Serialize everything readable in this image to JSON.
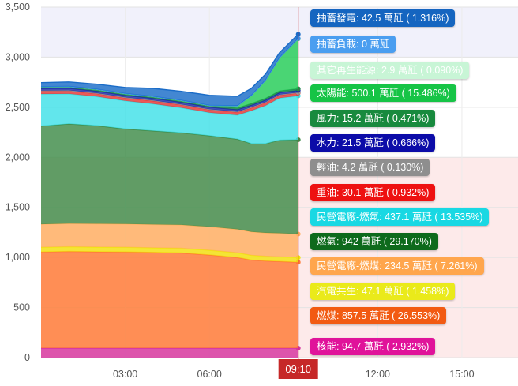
{
  "chart_data": {
    "type": "area",
    "stacked": true,
    "ylim": [
      0,
      3500
    ],
    "y_ticks": [
      "0",
      "500",
      "1,000",
      "1,500",
      "2,000",
      "2,500",
      "3,000",
      "3,500"
    ],
    "x_ticks": [
      {
        "hour": 3,
        "label": "03:00"
      },
      {
        "hour": 6,
        "label": "06:00"
      },
      {
        "hour": 12,
        "label": "12:00"
      },
      {
        "hour": 15,
        "label": "15:00"
      }
    ],
    "x_range": [
      0,
      17
    ],
    "grid": true,
    "cursor": {
      "hour": 9.1667,
      "label": "09:10"
    },
    "band_colors": [
      "#f1f1fb",
      "#ffffff",
      "#fdeaea"
    ],
    "x": [
      0,
      1,
      2,
      3,
      4,
      5,
      6,
      7,
      7.5,
      8,
      8.5,
      9.1667
    ],
    "series": [
      {
        "name": "核能",
        "color": "#d6339f",
        "values": [
          94.7,
          94.7,
          94.7,
          94.7,
          94.7,
          94.7,
          94.7,
          94.7,
          94.7,
          94.7,
          94.7,
          94.7
        ]
      },
      {
        "name": "燃煤",
        "color": "#ff7a34",
        "values": [
          960,
          965,
          962,
          960,
          955,
          950,
          930,
          905,
          880,
          870,
          865,
          857.5
        ]
      },
      {
        "name": "汽電共生",
        "color": "#f2e30f",
        "values": [
          47.1,
          47.1,
          47.1,
          47.1,
          47.1,
          47.1,
          47.1,
          47.1,
          47.1,
          47.1,
          47.1,
          47.1
        ]
      },
      {
        "name": "民營電廠-燃煤",
        "color": "#ffb062",
        "values": [
          230,
          232,
          232,
          232,
          232,
          233,
          234,
          234,
          234,
          234,
          234.5,
          234.5
        ]
      },
      {
        "name": "燃氣",
        "color": "#3e8b48",
        "values": [
          980,
          995,
          980,
          950,
          935,
          920,
          910,
          900,
          880,
          890,
          930,
          942
        ]
      },
      {
        "name": "民營電廠-燃氣",
        "color": "#3fe0e8",
        "values": [
          320,
          300,
          290,
          280,
          270,
          250,
          230,
          240,
          330,
          380,
          420,
          437.1
        ]
      },
      {
        "name": "重油",
        "color": "#e53535",
        "values": [
          30.1,
          30.1,
          30.1,
          30.1,
          30.1,
          30.1,
          30.1,
          30.1,
          30.1,
          30.1,
          30.1,
          30.1
        ]
      },
      {
        "name": "輕油",
        "color": "#9b9b9b",
        "values": [
          4.2,
          4.2,
          4.2,
          4.2,
          4.2,
          4.2,
          4.2,
          4.2,
          4.2,
          4.2,
          4.2,
          4.2
        ]
      },
      {
        "name": "水力",
        "color": "#1a2aa8",
        "values": [
          21.5,
          21.5,
          21.5,
          21.5,
          21.5,
          21.5,
          21.5,
          21.5,
          21.5,
          21.5,
          21.5,
          21.5
        ]
      },
      {
        "name": "風力",
        "color": "#1f8a4c",
        "values": [
          15.2,
          15.2,
          15.2,
          15.2,
          15.2,
          15.2,
          15.2,
          15.2,
          15.2,
          15.2,
          15.2,
          15.2
        ]
      },
      {
        "name": "太陽能",
        "color": "#22cc55",
        "values": [
          0,
          0,
          0,
          0,
          0,
          0,
          0,
          20,
          80,
          180,
          330,
          500.1
        ]
      },
      {
        "name": "其它再生能源",
        "color": "#c6f3d2",
        "values": [
          2.9,
          2.9,
          2.9,
          2.9,
          2.9,
          2.9,
          2.9,
          2.9,
          2.9,
          2.9,
          2.9,
          2.9
        ]
      },
      {
        "name": "抽蓄負載",
        "color": "#3d8fe8",
        "values": [
          0,
          0,
          0,
          0,
          0,
          0,
          0,
          0,
          0,
          0,
          0,
          0
        ]
      },
      {
        "name": "抽蓄發電",
        "color": "#1a6cc8",
        "values": [
          40,
          45,
          50,
          60,
          80,
          90,
          100,
          95,
          70,
          60,
          50,
          42.5
        ]
      }
    ],
    "tooltips": [
      {
        "text": "抽蓄發電: 42.5 萬瓩 ( 1.316%)",
        "bg": "#1565c0",
        "fg": "#ffffff"
      },
      {
        "text": "抽蓄負載: 0 萬瓩",
        "bg": "#4a9ef0",
        "fg": "#ffffff"
      },
      {
        "text": "其它再生能源: 2.9 萬瓩 ( 0.090%)",
        "bg": "#c8f5d6",
        "fg": "#ffffff"
      },
      {
        "text": "太陽能: 500.1 萬瓩 ( 15.486%)",
        "bg": "#16c446",
        "fg": "#ffffff"
      },
      {
        "text": "風力: 15.2 萬瓩 ( 0.471%)",
        "bg": "#188a3e",
        "fg": "#ffffff"
      },
      {
        "text": "水力: 21.5 萬瓩 ( 0.666%)",
        "bg": "#0c0ca8",
        "fg": "#ffffff"
      },
      {
        "text": "輕油: 4.2 萬瓩 ( 0.130%)",
        "bg": "#8e8e8e",
        "fg": "#ffffff"
      },
      {
        "text": "重油: 30.1 萬瓩 ( 0.932%)",
        "bg": "#ee1111",
        "fg": "#ffffff"
      },
      {
        "text": "民營電廠-燃氣: 437.1 萬瓩 ( 13.535%)",
        "bg": "#19d8e3",
        "fg": "#ffffff"
      },
      {
        "text": "燃氣: 942 萬瓩 ( 29.170%)",
        "bg": "#0e6a1c",
        "fg": "#ffffff"
      },
      {
        "text": "民營電廠-燃煤: 234.5 萬瓩 ( 7.261%)",
        "bg": "#ffa64d",
        "fg": "#ffffff"
      },
      {
        "text": "汽電共生: 47.1 萬瓩 ( 1.458%)",
        "bg": "#eaea1a",
        "fg": "#ffffff"
      },
      {
        "text": "燃煤: 857.5 萬瓩 ( 26.553%)",
        "bg": "#f25a12",
        "fg": "#ffffff"
      },
      {
        "text": "核能: 94.7 萬瓩 ( 2.932%)",
        "bg": "#e0139a",
        "fg": "#ffffff"
      }
    ]
  }
}
